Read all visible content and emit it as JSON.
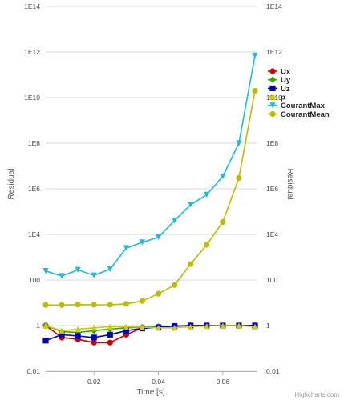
{
  "chart_data": {
    "type": "line",
    "xlabel": "Time [s]",
    "ylabel": "Residual",
    "ylabel_right": "Residual",
    "x_ticks": [
      "0.02",
      "0.04",
      "0.06"
    ],
    "x_tick_values": [
      0.02,
      0.04,
      0.06
    ],
    "y_scale": "log",
    "y_ticks": [
      "0.01",
      "1",
      "100",
      "1E4",
      "1E6",
      "1E8",
      "1E10",
      "1E12",
      "1E14"
    ],
    "y_tick_values": [
      0.01,
      1,
      100,
      10000,
      1000000,
      100000000,
      10000000000,
      1000000000000,
      100000000000000
    ],
    "xlim": [
      0.005,
      0.0705
    ],
    "ylim": [
      0.01,
      100000000000000
    ],
    "grid": "horizontal",
    "legend_position": "right",
    "credit": "Highcharts.com",
    "series": [
      {
        "name": "Ux",
        "color": "#cc0000",
        "marker": "circle",
        "x": [
          0.005,
          0.01,
          0.015,
          0.02,
          0.025,
          0.03,
          0.035,
          0.04,
          0.045,
          0.05,
          0.055,
          0.06,
          0.065,
          0.07
        ],
        "y": [
          1,
          0.3,
          0.25,
          0.18,
          0.18,
          0.4,
          0.8,
          0.85,
          0.95,
          1,
          1,
          1,
          1,
          1
        ]
      },
      {
        "name": "Uy",
        "color": "#33aa00",
        "marker": "diamond",
        "x": [
          0.005,
          0.01,
          0.015,
          0.02,
          0.025,
          0.03,
          0.035,
          0.04,
          0.045,
          0.05,
          0.055,
          0.06,
          0.065,
          0.07
        ],
        "y": [
          1,
          0.55,
          0.5,
          0.6,
          0.7,
          0.8,
          0.85,
          0.9,
          0.95,
          1,
          1,
          1,
          1,
          1
        ]
      },
      {
        "name": "Uz",
        "color": "#0000bb",
        "marker": "square",
        "x": [
          0.005,
          0.01,
          0.015,
          0.02,
          0.025,
          0.03,
          0.035,
          0.04,
          0.045,
          0.05,
          0.055,
          0.06,
          0.065,
          0.07
        ],
        "y": [
          0.22,
          0.4,
          0.35,
          0.3,
          0.4,
          0.6,
          0.75,
          0.85,
          0.95,
          1,
          1,
          1,
          1,
          1
        ]
      },
      {
        "name": "p",
        "color": "#cccc00",
        "marker": "triangle",
        "x": [
          0.005,
          0.01,
          0.015,
          0.02,
          0.025,
          0.03,
          0.035,
          0.04,
          0.045,
          0.05,
          0.055,
          0.06,
          0.065,
          0.07
        ],
        "y": [
          1,
          0.6,
          0.7,
          0.8,
          0.9,
          0.9,
          0.85,
          0.8,
          0.8,
          0.9,
          0.95,
          1,
          1,
          0.9
        ]
      },
      {
        "name": "CourantMax",
        "color": "#22bbcc",
        "marker": "triangle-down",
        "x": [
          0.005,
          0.01,
          0.015,
          0.02,
          0.025,
          0.03,
          0.035,
          0.04,
          0.045,
          0.05,
          0.055,
          0.06,
          0.065,
          0.07
        ],
        "y": [
          250,
          150,
          280,
          160,
          300,
          2500,
          4500,
          7500,
          40000,
          200000,
          550000,
          3500000,
          100000000,
          700000000000
        ]
      },
      {
        "name": "CourantMean",
        "color": "#bbbb00",
        "marker": "circle",
        "x": [
          0.005,
          0.01,
          0.015,
          0.02,
          0.025,
          0.03,
          0.035,
          0.04,
          0.045,
          0.05,
          0.055,
          0.06,
          0.065,
          0.07
        ],
        "y": [
          8,
          8,
          8.3,
          8.2,
          8.2,
          9,
          12,
          25,
          60,
          500,
          3500,
          35000,
          3000000,
          20000000000
        ]
      }
    ]
  }
}
